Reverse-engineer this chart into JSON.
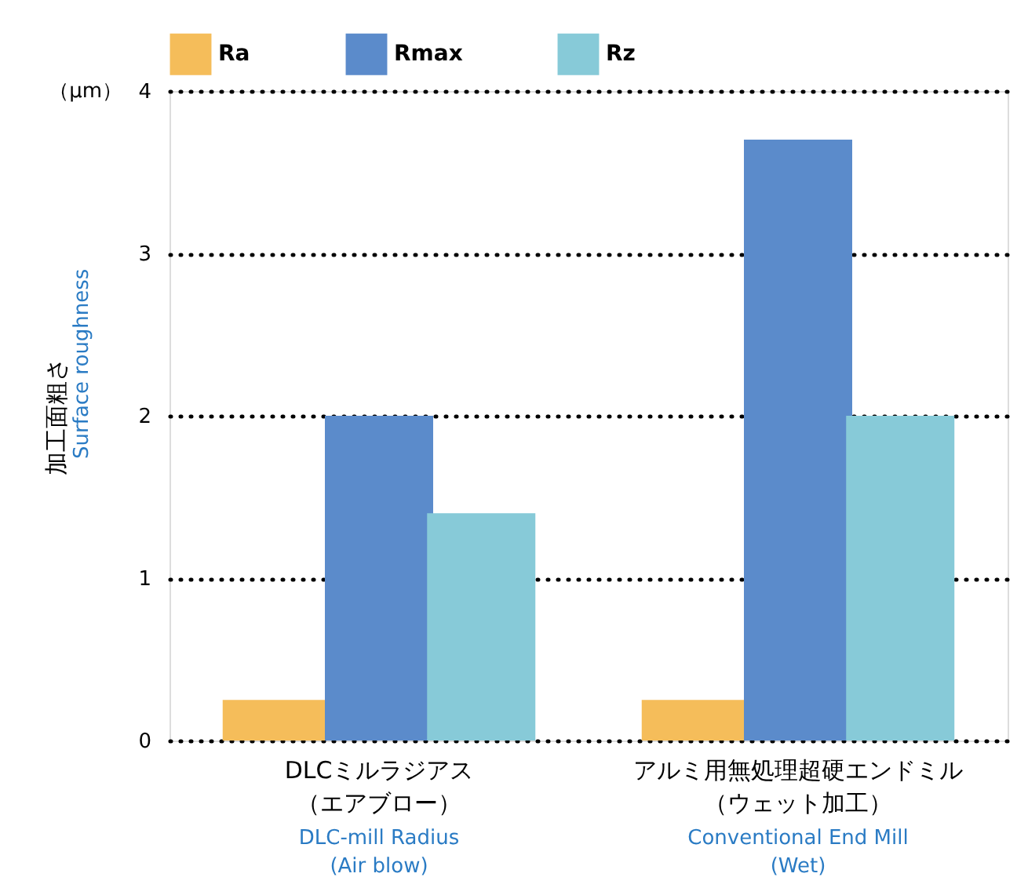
{
  "chart_data": {
    "type": "bar",
    "categories": [
      "DLCミルラジアス（エアブロー）",
      "アルミ用無処理超硬エンドミル（ウェット加工）"
    ],
    "series": [
      {
        "name": "Ra",
        "color": "#f5bd5a",
        "values": [
          0.25,
          0.25
        ]
      },
      {
        "name": "Rmax",
        "color": "#5b8bcb",
        "values": [
          2.0,
          3.7
        ]
      },
      {
        "name": "Rz",
        "color": "#87cad8",
        "values": [
          1.4,
          2.0
        ]
      }
    ],
    "ylabel": "加工面粗さ",
    "annotations": [
      "（μm）",
      "Surface roughness",
      "DLC-mill Radius\n(Air blow)",
      "Conventional End Mill\n(Wet)"
    ],
    "ylim": [
      0,
      4
    ],
    "yticks": [
      0,
      1,
      2,
      3,
      4
    ],
    "grid": "y",
    "line_style": "dotted",
    "legend": "top"
  }
}
